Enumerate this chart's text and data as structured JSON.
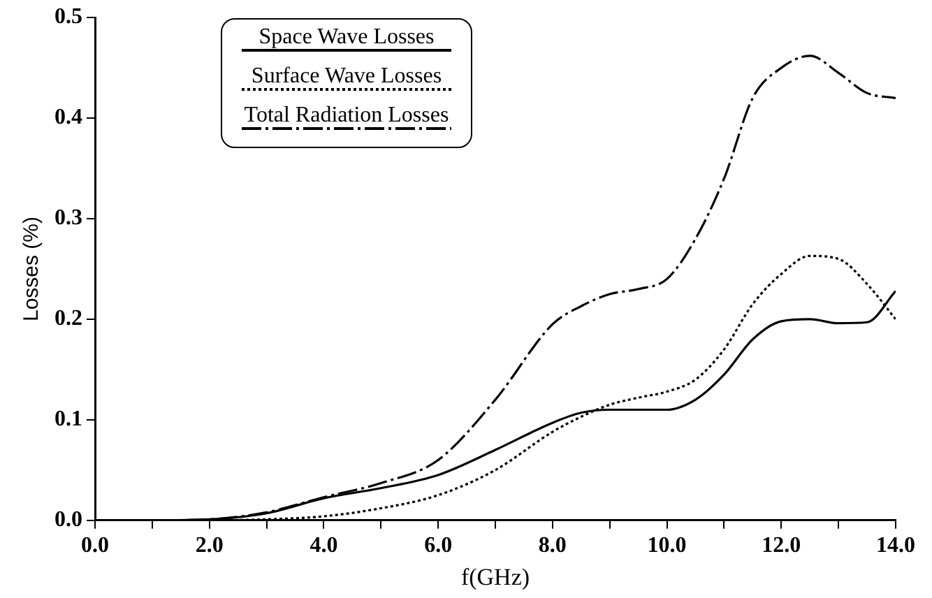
{
  "chart_data": {
    "type": "line",
    "xlabel": "f(GHz)",
    "ylabel": "Losses (%)",
    "xlim": [
      0,
      14
    ],
    "ylim": [
      0,
      0.5
    ],
    "xticks": [
      {
        "value": 0,
        "label": "0.0"
      },
      {
        "value": 1,
        "label": null
      },
      {
        "value": 2,
        "label": "2.0"
      },
      {
        "value": 3,
        "label": null
      },
      {
        "value": 4,
        "label": "4.0"
      },
      {
        "value": 5,
        "label": null
      },
      {
        "value": 6,
        "label": "6.0"
      },
      {
        "value": 7,
        "label": null
      },
      {
        "value": 8,
        "label": "8.0"
      },
      {
        "value": 9,
        "label": null
      },
      {
        "value": 10,
        "label": "10.0"
      },
      {
        "value": 11,
        "label": null
      },
      {
        "value": 12,
        "label": "12.0"
      },
      {
        "value": 13,
        "label": null
      },
      {
        "value": 14,
        "label": "14.0"
      }
    ],
    "yticks": [
      {
        "value": 0,
        "label": "0.0"
      },
      {
        "value": 0.1,
        "label": "0.1"
      },
      {
        "value": 0.2,
        "label": "0.2"
      },
      {
        "value": 0.3,
        "label": "0.3"
      },
      {
        "value": 0.4,
        "label": "0.4"
      },
      {
        "value": 0.5,
        "label": "0.5"
      }
    ],
    "x": [
      0,
      1,
      2,
      3,
      4,
      5,
      6,
      7,
      8,
      8.5,
      9,
      9.5,
      10,
      10.5,
      11,
      11.5,
      12,
      12.5,
      13,
      13.5,
      14
    ],
    "legend": "top left",
    "series": [
      {
        "name": "Space Wave Losses",
        "color": "#000000",
        "line_style": "solid",
        "values": [
          0,
          0,
          0.001,
          0.007,
          0.022,
          0.032,
          0.045,
          0.07,
          0.097,
          0.107,
          0.11,
          0.11,
          0.11,
          0.12,
          0.145,
          0.18,
          0.198,
          0.2,
          0.196,
          0.197,
          0.228
        ]
      },
      {
        "name": "Surface Wave Losses",
        "color": "#000000",
        "line_style": "dotted",
        "values": [
          0,
          0,
          0,
          0.001,
          0.004,
          0.012,
          0.025,
          0.05,
          0.088,
          0.103,
          0.115,
          0.122,
          0.128,
          0.14,
          0.17,
          0.215,
          0.245,
          0.263,
          0.26,
          0.235,
          0.2
        ]
      },
      {
        "name": "Total Radiation Losses",
        "color": "#000000",
        "line_style": "dashed",
        "values": [
          0,
          0,
          0.001,
          0.008,
          0.023,
          0.037,
          0.06,
          0.12,
          0.195,
          0.213,
          0.225,
          0.23,
          0.24,
          0.28,
          0.34,
          0.42,
          0.45,
          0.462,
          0.445,
          0.425,
          0.42
        ]
      }
    ]
  }
}
